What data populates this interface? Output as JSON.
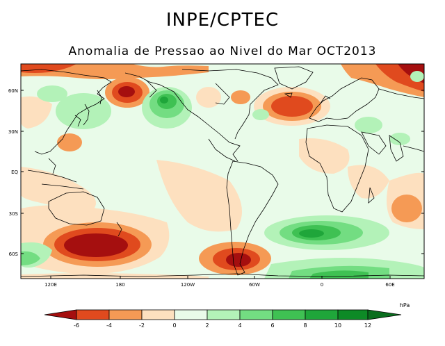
{
  "header": {
    "title": "INPE/CPTEC",
    "subtitle": "Anomalia de Pressao ao Nivel do Mar OCT2013"
  },
  "map": {
    "lat_labels": [
      "60N",
      "30N",
      "EQ",
      "30S",
      "60S"
    ],
    "lon_labels": [
      "120E",
      "180",
      "120W",
      "60W",
      "0",
      "60E"
    ]
  },
  "colorbar": {
    "unit": "hPa",
    "tick_labels": [
      "-6",
      "-4",
      "-2",
      "0",
      "2",
      "4",
      "6",
      "8",
      "10",
      "12"
    ],
    "colors": {
      "le_-6": "#a50f0f",
      "-6_-4": "#e04a1e",
      "-4_-2": "#f59a55",
      "-2_0": "#fde0bf",
      "0_2": "#e9fbe9",
      "2_4": "#b3f2b8",
      "4_6": "#73dd82",
      "6_8": "#3fc153",
      "8_10": "#1fa63a",
      "10_12": "#0d8a26",
      "ge_12": "#0a6e1e"
    }
  }
}
